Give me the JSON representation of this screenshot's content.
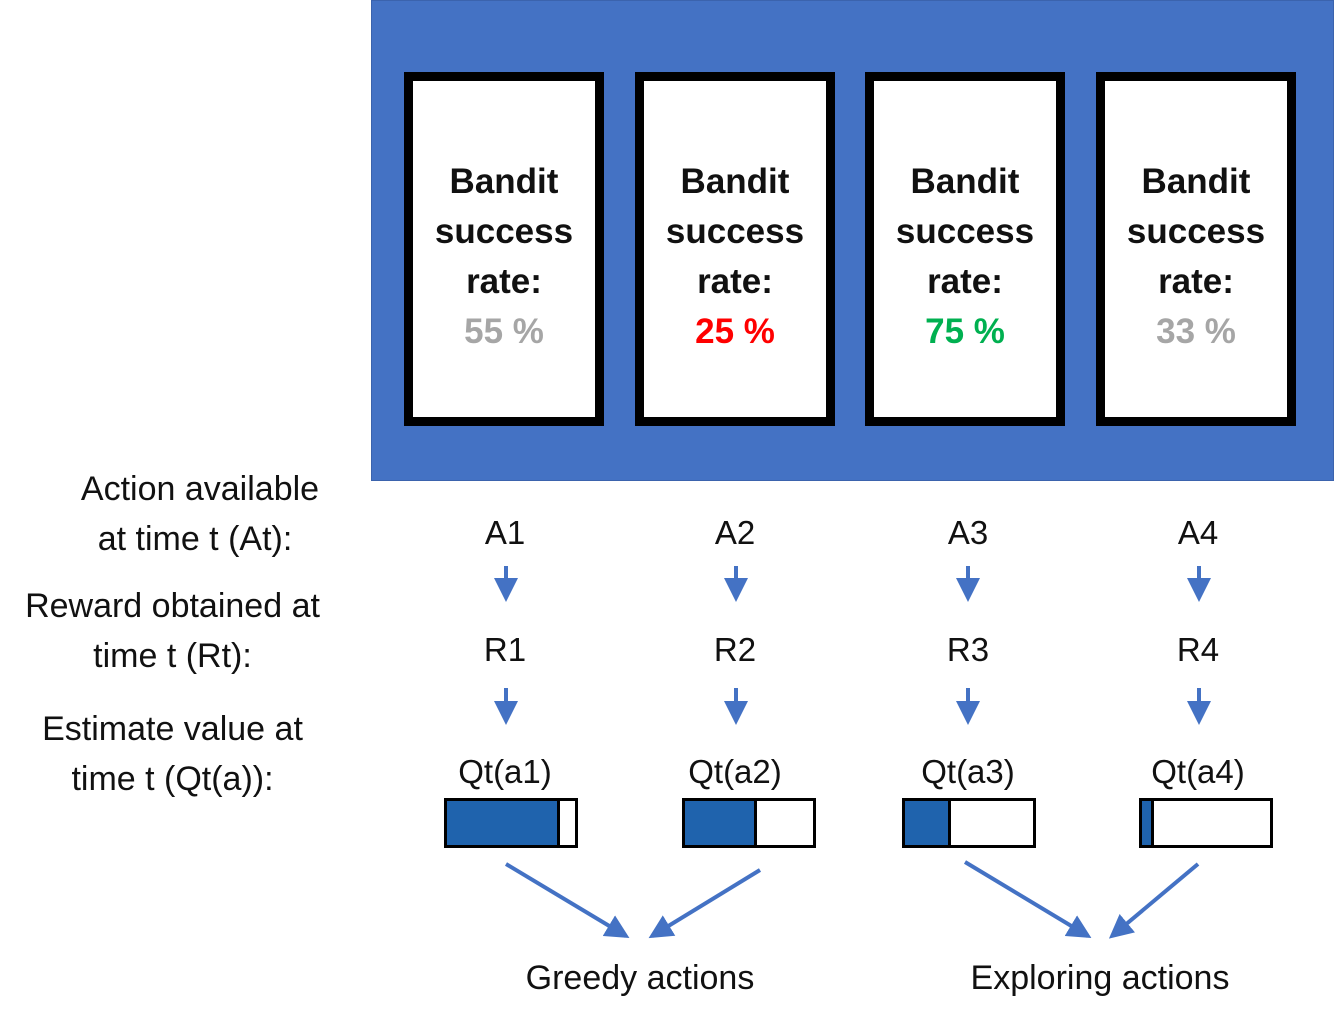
{
  "bandits": [
    {
      "title_l1": "Bandit",
      "title_l2": "success",
      "title_l3": "rate:",
      "rate": "55 %",
      "rate_color": "#A6A6A6"
    },
    {
      "title_l1": "Bandit",
      "title_l2": "success",
      "title_l3": "rate:",
      "rate": "25 %",
      "rate_color": "#FF0000"
    },
    {
      "title_l1": "Bandit",
      "title_l2": "success",
      "title_l3": "rate:",
      "rate": "75 %",
      "rate_color": "#00B050"
    },
    {
      "title_l1": "Bandit",
      "title_l2": "success",
      "title_l3": "rate:",
      "rate": "33 %",
      "rate_color": "#A6A6A6"
    }
  ],
  "row_labels": {
    "action_l1": "Action available",
    "action_l2": "at time t (At):",
    "reward_l1": "Reward obtained at",
    "reward_l2": "time t (Rt):",
    "estimate_l1": "Estimate value at",
    "estimate_l2": "time t (Qt(a)):"
  },
  "actions": [
    "A1",
    "A2",
    "A3",
    "A4"
  ],
  "rewards": [
    "R1",
    "R2",
    "R3",
    "R4"
  ],
  "estimates": [
    "Qt(a1)",
    "Qt(a2)",
    "Qt(a3)",
    "Qt(a4)"
  ],
  "estimate_levels": [
    0.88,
    0.56,
    0.36,
    0.09
  ],
  "groups": {
    "greedy": "Greedy actions",
    "exploring": "Exploring actions"
  },
  "colors": {
    "panel": "#4472C4",
    "arrow": "#4472C4",
    "bar_fill": "#1F63AD"
  }
}
